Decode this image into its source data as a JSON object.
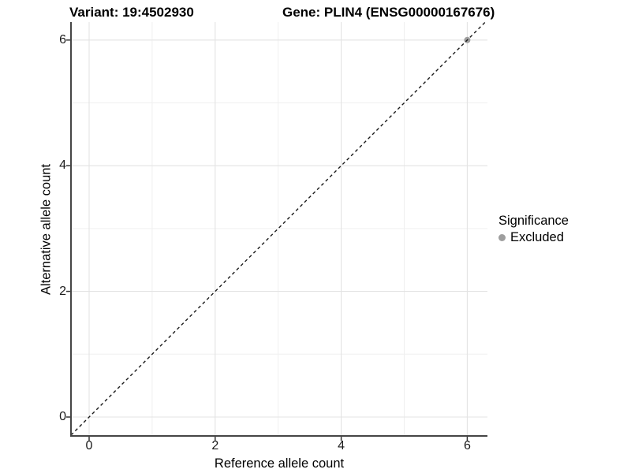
{
  "header": {
    "variant_title": "Variant: 19:4502930",
    "gene_title": "Gene: PLIN4 (ENSG00000167676)"
  },
  "axes": {
    "x": {
      "label": "Reference allele count",
      "tick_labels": [
        "0",
        "2",
        "4",
        "6"
      ]
    },
    "y": {
      "label": "Alternative allele count",
      "tick_labels": [
        "0",
        "2",
        "4",
        "6"
      ]
    }
  },
  "legend": {
    "title": "Significance",
    "items": [
      {
        "label": "Excluded",
        "color": "#9e9e9e",
        "marker": "circle-icon"
      }
    ]
  },
  "colors": {
    "background": "#ffffff",
    "grid_major": "#e3e3e3",
    "grid_minor": "#f0f0f0",
    "axis_line": "#454545",
    "tick_mark": "#333333",
    "tick_text": "#1a1a1a",
    "reference_line": "#1a1a1a",
    "excluded_point": "#9e9e9e"
  },
  "chart_data": {
    "type": "scatter",
    "title": "Variant: 19:4502930 | Gene: PLIN4 (ENSG00000167676)",
    "xlabel": "Reference allele count",
    "ylabel": "Alternative allele count",
    "x_ticks": [
      0,
      2,
      4,
      6
    ],
    "y_ticks": [
      0,
      2,
      4,
      6
    ],
    "x_minor_gridlines": [
      1,
      3,
      5
    ],
    "y_minor_gridlines": [
      1,
      3,
      5
    ],
    "xlim": [
      -0.29,
      6.32
    ],
    "ylim": [
      -0.3,
      6.29
    ],
    "grid": "major+minor",
    "legend_position": "right",
    "legend_title": "Significance",
    "series": [
      {
        "name": "Excluded",
        "color": "#9e9e9e",
        "marker": "circle",
        "points": [
          {
            "x": 6,
            "y": 6
          }
        ]
      }
    ],
    "reference_line": {
      "kind": "abline",
      "slope": 1,
      "intercept": 0,
      "style": "dashed",
      "color": "#1a1a1a"
    }
  }
}
